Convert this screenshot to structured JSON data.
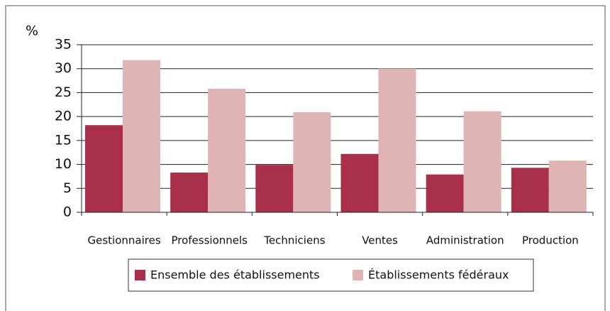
{
  "chart_data": {
    "type": "bar",
    "y_label": "%",
    "categories": [
      "Gestionnaires",
      "Professionnels",
      "Techniciens",
      "Ventes",
      "Administration",
      "Production"
    ],
    "series": [
      {
        "name": "Ensemble des établissements",
        "color": "#a8304a",
        "values": [
          18.2,
          8.3,
          9.9,
          12.2,
          7.9,
          9.3
        ]
      },
      {
        "name": "Établissements fédéraux",
        "color": "#e0b4b4",
        "values": [
          31.8,
          25.8,
          20.9,
          30.0,
          21.1,
          10.8
        ]
      }
    ],
    "ylim": [
      0,
      35
    ],
    "yticks": [
      0,
      5,
      10,
      15,
      20,
      25,
      30,
      35
    ],
    "grid": true,
    "legend": "bottom"
  }
}
